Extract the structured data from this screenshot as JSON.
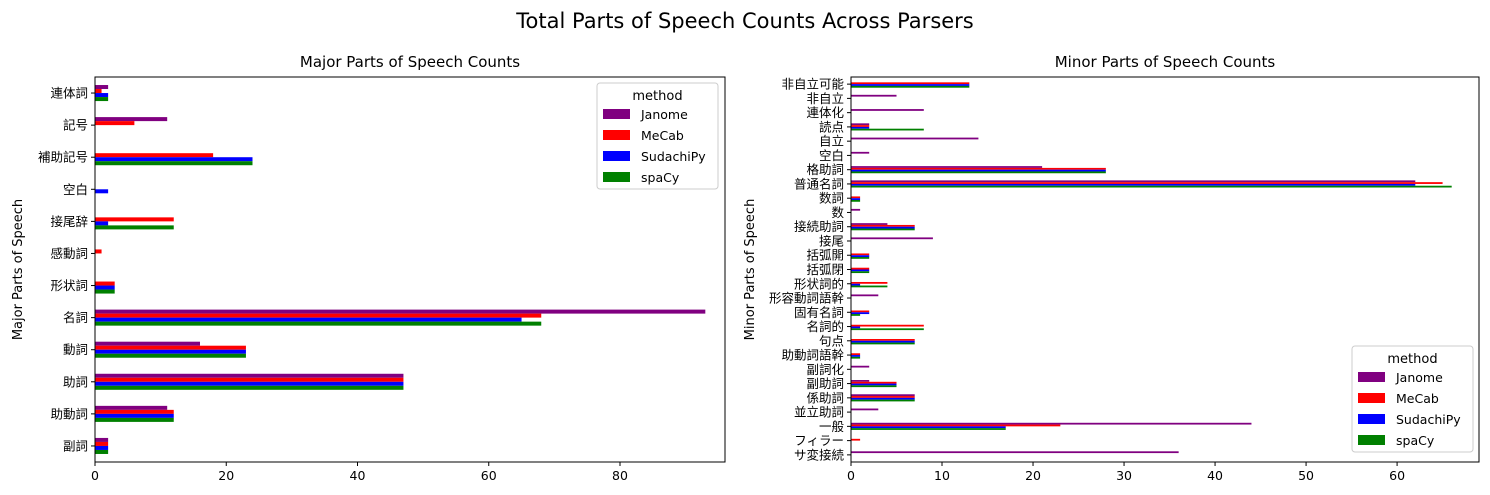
{
  "figure": {
    "title": "Total Parts of Speech Counts Across Parsers"
  },
  "colors": {
    "Janome": "#800080",
    "MeCab": "#ff0000",
    "SudachiPy": "#0000ff",
    "spaCy": "#008000"
  },
  "chart_data": [
    {
      "type": "bar",
      "orientation": "horizontal",
      "title": "Major Parts of Speech Counts",
      "xlabel": "",
      "ylabel": "Major Parts of Speech",
      "xlim": [
        0,
        96
      ],
      "xticks": [
        0,
        20,
        40,
        60,
        80
      ],
      "legend": {
        "title": "method",
        "placement": "upper right"
      },
      "categories": [
        "副詞",
        "助動詞",
        "助詞",
        "動詞",
        "名詞",
        "形状詞",
        "感動詞",
        "接尾辞",
        "空白",
        "補助記号",
        "記号",
        "連体詞"
      ],
      "series": [
        {
          "name": "Janome",
          "values": [
            2,
            11,
            47,
            16,
            93,
            0,
            0,
            0,
            0,
            0,
            11,
            2
          ]
        },
        {
          "name": "MeCab",
          "values": [
            2,
            12,
            47,
            23,
            68,
            3,
            1,
            12,
            0,
            18,
            6,
            1
          ]
        },
        {
          "name": "SudachiPy",
          "values": [
            2,
            12,
            47,
            23,
            65,
            3,
            0,
            2,
            2,
            24,
            0,
            2
          ]
        },
        {
          "name": "spaCy",
          "values": [
            2,
            12,
            47,
            23,
            68,
            3,
            0,
            12,
            0,
            24,
            0,
            2
          ]
        }
      ]
    },
    {
      "type": "bar",
      "orientation": "horizontal",
      "title": "Minor Parts of Speech Counts",
      "xlabel": "",
      "ylabel": "Minor Parts of Speech",
      "xlim": [
        0,
        69
      ],
      "xticks": [
        0,
        10,
        20,
        30,
        40,
        50,
        60
      ],
      "legend": {
        "title": "method",
        "placement": "lower right"
      },
      "categories": [
        "サ変接続",
        "フィラー",
        "一般",
        "並立助詞",
        "係助詞",
        "副助詞",
        "副詞化",
        "助動詞語幹",
        "句点",
        "名詞的",
        "固有名詞",
        "形容動詞語幹",
        "形状詞的",
        "括弧閉",
        "括弧開",
        "接尾",
        "接続助詞",
        "数",
        "数詞",
        "普通名詞",
        "格助詞",
        "空白",
        "自立",
        "読点",
        "連体化",
        "非自立",
        "非自立可能"
      ],
      "series": [
        {
          "name": "Janome",
          "values": [
            36,
            0,
            44,
            3,
            7,
            2,
            2,
            0,
            0,
            0,
            0,
            3,
            0,
            0,
            0,
            9,
            4,
            1,
            0,
            62,
            21,
            2,
            14,
            2,
            8,
            5,
            0
          ]
        },
        {
          "name": "MeCab",
          "values": [
            0,
            1,
            23,
            0,
            7,
            5,
            0,
            1,
            7,
            8,
            2,
            0,
            4,
            2,
            2,
            0,
            7,
            0,
            1,
            65,
            28,
            0,
            0,
            2,
            0,
            0,
            13
          ]
        },
        {
          "name": "SudachiPy",
          "values": [
            0,
            0,
            17,
            0,
            7,
            5,
            0,
            1,
            7,
            1,
            2,
            0,
            1,
            2,
            2,
            0,
            7,
            0,
            1,
            62,
            28,
            0,
            0,
            2,
            0,
            0,
            13
          ]
        },
        {
          "name": "spaCy",
          "values": [
            0,
            0,
            17,
            0,
            7,
            5,
            0,
            1,
            7,
            8,
            1,
            0,
            4,
            2,
            2,
            0,
            7,
            0,
            1,
            66,
            28,
            0,
            0,
            8,
            0,
            0,
            13
          ]
        }
      ]
    }
  ]
}
